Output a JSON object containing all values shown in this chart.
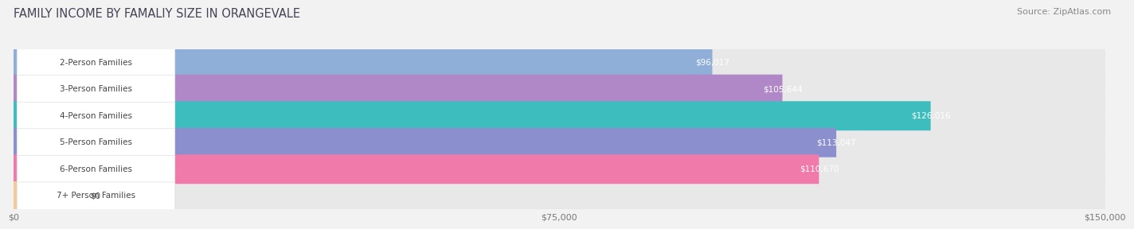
{
  "title": "FAMILY INCOME BY FAMALIY SIZE IN ORANGEVALE",
  "source": "Source: ZipAtlas.com",
  "categories": [
    "2-Person Families",
    "3-Person Families",
    "4-Person Families",
    "5-Person Families",
    "6-Person Families",
    "7+ Person Families"
  ],
  "values": [
    96017,
    105644,
    126016,
    113047,
    110670,
    0
  ],
  "bar_colors": [
    "#8fafd9",
    "#b088c8",
    "#3dbdbe",
    "#8b8fce",
    "#f07aaa",
    "#f5c99a"
  ],
  "label_values": [
    "$96,017",
    "$105,644",
    "$126,016",
    "$113,047",
    "$110,670",
    "$0"
  ],
  "xmax": 150000,
  "xtick_labels": [
    "$0",
    "$75,000",
    "$150,000"
  ],
  "xtick_vals": [
    0,
    75000,
    150000
  ],
  "bg_color": "#f2f2f2",
  "bar_bg_color": "#e8e8e8",
  "title_fontsize": 10.5,
  "source_fontsize": 8,
  "label_fontsize": 7.5,
  "cat_fontsize": 7.5,
  "tick_fontsize": 8
}
